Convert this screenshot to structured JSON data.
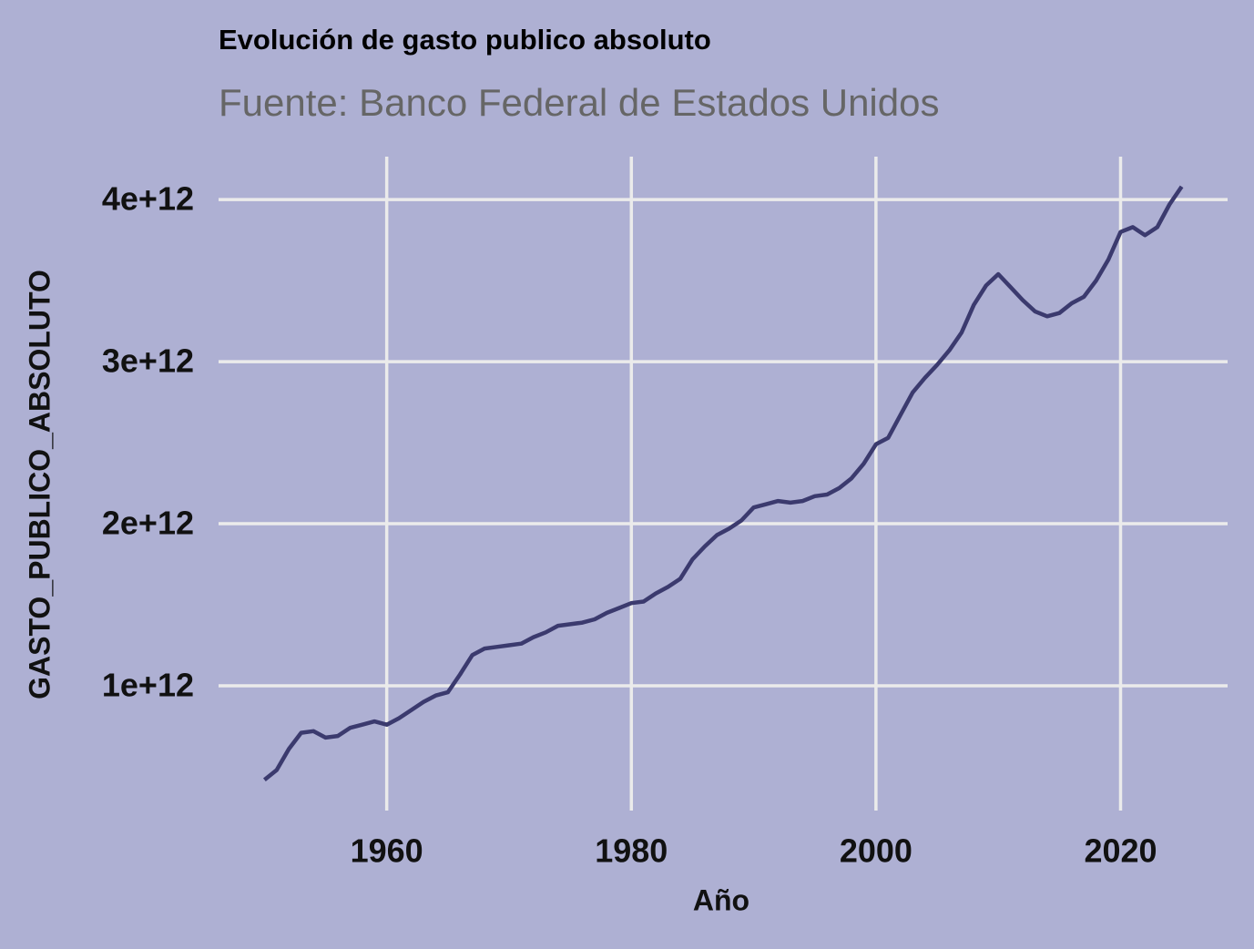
{
  "chart_data": {
    "type": "line",
    "title": "Evolución de gasto publico absoluto",
    "subtitle": "Fuente: Banco Federal de Estados Unidos",
    "x_label": "Año",
    "y_label": "GASTO_PUBLICO_ABSOLUTO",
    "x": [
      1950,
      1951,
      1952,
      1953,
      1954,
      1955,
      1956,
      1957,
      1958,
      1959,
      1960,
      1961,
      1962,
      1963,
      1964,
      1965,
      1966,
      1967,
      1968,
      1969,
      1970,
      1971,
      1972,
      1973,
      1974,
      1975,
      1976,
      1977,
      1978,
      1979,
      1980,
      1981,
      1982,
      1983,
      1984,
      1985,
      1986,
      1987,
      1988,
      1989,
      1990,
      1991,
      1992,
      1993,
      1994,
      1995,
      1996,
      1997,
      1998,
      1999,
      2000,
      2001,
      2002,
      2003,
      2004,
      2005,
      2006,
      2007,
      2008,
      2009,
      2010,
      2011,
      2012,
      2013,
      2014,
      2015,
      2016,
      2017,
      2018,
      2019,
      2020,
      2021,
      2022,
      2023,
      2024,
      2025
    ],
    "series": [
      {
        "name": "GASTO_PUBLICO_ABSOLUTO",
        "color": "#3b3a6e",
        "values": [
          420000000000.0,
          480000000000.0,
          610000000000.0,
          710000000000.0,
          720000000000.0,
          680000000000.0,
          690000000000.0,
          740000000000.0,
          760000000000.0,
          780000000000.0,
          760000000000.0,
          800000000000.0,
          850000000000.0,
          900000000000.0,
          940000000000.0,
          960000000000.0,
          1070000000000.0,
          1190000000000.0,
          1230000000000.0,
          1240000000000.0,
          1250000000000.0,
          1260000000000.0,
          1300000000000.0,
          1330000000000.0,
          1370000000000.0,
          1380000000000.0,
          1390000000000.0,
          1410000000000.0,
          1450000000000.0,
          1480000000000.0,
          1510000000000.0,
          1520000000000.0,
          1570000000000.0,
          1610000000000.0,
          1660000000000.0,
          1780000000000.0,
          1860000000000.0,
          1930000000000.0,
          1970000000000.0,
          2020000000000.0,
          2100000000000.0,
          2120000000000.0,
          2140000000000.0,
          2130000000000.0,
          2140000000000.0,
          2170000000000.0,
          2180000000000.0,
          2220000000000.0,
          2280000000000.0,
          2370000000000.0,
          2490000000000.0,
          2530000000000.0,
          2670000000000.0,
          2810000000000.0,
          2900000000000.0,
          2980000000000.0,
          3070000000000.0,
          3180000000000.0,
          3350000000000.0,
          3470000000000.0,
          3540000000000.0,
          3460000000000.0,
          3380000000000.0,
          3310000000000.0,
          3280000000000.0,
          3300000000000.0,
          3360000000000.0,
          3400000000000.0,
          3500000000000.0,
          3630000000000.0,
          3800000000000.0,
          3830000000000.0,
          3780000000000.0,
          3830000000000.0,
          3970000000000.0,
          4080000000000.0
        ]
      }
    ],
    "xlim": [
      1946.25,
      2028.75
    ],
    "xticks": [
      1960,
      1980,
      2000,
      2020
    ],
    "ylim": [
      230000000000.0,
      4265000000000.0
    ],
    "yticks": [
      {
        "value": 1000000000000.0,
        "label": "1e+12"
      },
      {
        "value": 2000000000000.0,
        "label": "2e+12"
      },
      {
        "value": 3000000000000.0,
        "label": "3e+12"
      },
      {
        "value": 4000000000000.0,
        "label": "4e+12"
      }
    ],
    "grid": true
  }
}
